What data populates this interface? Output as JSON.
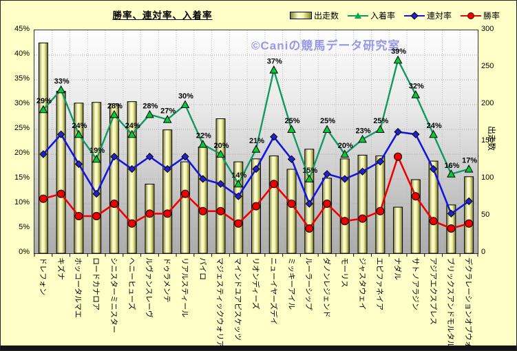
{
  "title": "勝率、連対率、入着率",
  "watermark": "©Caniの競馬データ研究室",
  "legend": {
    "items": [
      {
        "label": "出走数",
        "type": "bar"
      },
      {
        "label": "入着率",
        "type": "line-triangle",
        "color": "#00B050"
      },
      {
        "label": "連対率",
        "type": "line-diamond",
        "color": "#2222CC"
      },
      {
        "label": "勝率",
        "type": "line-circle",
        "color": "#EE0000"
      }
    ]
  },
  "axes": {
    "left_ticks": [
      "0%",
      "5%",
      "10%",
      "15%",
      "20%",
      "25%",
      "30%",
      "35%",
      "40%",
      "45%"
    ],
    "right_ticks": [
      "0",
      "50",
      "100",
      "150",
      "200",
      "250",
      "300"
    ],
    "right_label": "出走数"
  },
  "colors": {
    "background": "#FFFFC8",
    "bar_edge": "#85852F",
    "bar_face": "#F4F4A6",
    "green_line": "#0E9963",
    "green_marker": "#00CC33",
    "blue_line": "#1414E0",
    "blue_marker": "#2222CC",
    "red_line": "#EE0000",
    "red_marker": "#EE0000",
    "watermark": "#9898E8"
  },
  "chart_data": {
    "type": "combo-bar-line",
    "categories": [
      "ドレフォン",
      "キズナ",
      "ホッコータルマエ",
      "ロードカナロア",
      "シニスターミニスター",
      "ヘニーヒューズ",
      "ルヴァンスレーヴ",
      "ドゥラメンテ",
      "リアルスティール",
      "パイロ",
      "マジェスティックウォリアー",
      "マインドユアビスケッツ",
      "リオンディーズ",
      "ニューイヤーズデイ",
      "ミッキーアイル",
      "ルーラーシップ",
      "ダノンレジェンド",
      "モーリス",
      "ジャスタウェイ",
      "エピファネイア",
      "ナダル",
      "サトノアラジン",
      "アジアエクスプレス",
      "ブリックスアンドモルタル",
      "デクラレーションオブウォー"
    ],
    "series": [
      {
        "name": "出走数",
        "type": "bar",
        "axis": "right",
        "values": [
          283,
          218,
          202,
          203,
          201,
          204,
          93,
          166,
          123,
          143,
          181,
          123,
          127,
          131,
          113,
          140,
          101,
          127,
          132,
          131,
          62,
          99,
          124,
          65,
          103
        ]
      },
      {
        "name": "入着率",
        "type": "line",
        "marker": "triangle",
        "axis": "left",
        "values": [
          29,
          33,
          24,
          19,
          28,
          24,
          28,
          27,
          30,
          22,
          20,
          14,
          21,
          37,
          25,
          15,
          25,
          20,
          23,
          25,
          39,
          32,
          24,
          16,
          17
        ],
        "point_labels": [
          "29%",
          "33%",
          "24%",
          "19%",
          "28%",
          "24%",
          "28%",
          "27%",
          "30%",
          "22%",
          "20%",
          "14%",
          "21%",
          "37%",
          "25%",
          "15%",
          "25%",
          "20%",
          "23%",
          "25%",
          "39%",
          "32%",
          "24%",
          "16%",
          "17%"
        ]
      },
      {
        "name": "連対率",
        "type": "line",
        "marker": "diamond",
        "axis": "left",
        "values": [
          20,
          24,
          18,
          12,
          19.5,
          17,
          19.5,
          17,
          19.5,
          15,
          14,
          11.5,
          17,
          23.5,
          19,
          10,
          16,
          15,
          16.5,
          18.5,
          24.5,
          24,
          17,
          8,
          10.5
        ]
      },
      {
        "name": "勝率",
        "type": "line",
        "marker": "circle",
        "axis": "left",
        "values": [
          11,
          12,
          7.5,
          7.5,
          10,
          6,
          8,
          8,
          12,
          8.5,
          8.5,
          6,
          9.5,
          14,
          10,
          5,
          10,
          6.5,
          7,
          8.5,
          19.5,
          11.5,
          6.5,
          5,
          6
        ]
      }
    ],
    "ylim_left": [
      0,
      45
    ],
    "ylim_right": [
      0,
      300
    ],
    "grid": true,
    "legend_position": "top-right"
  }
}
